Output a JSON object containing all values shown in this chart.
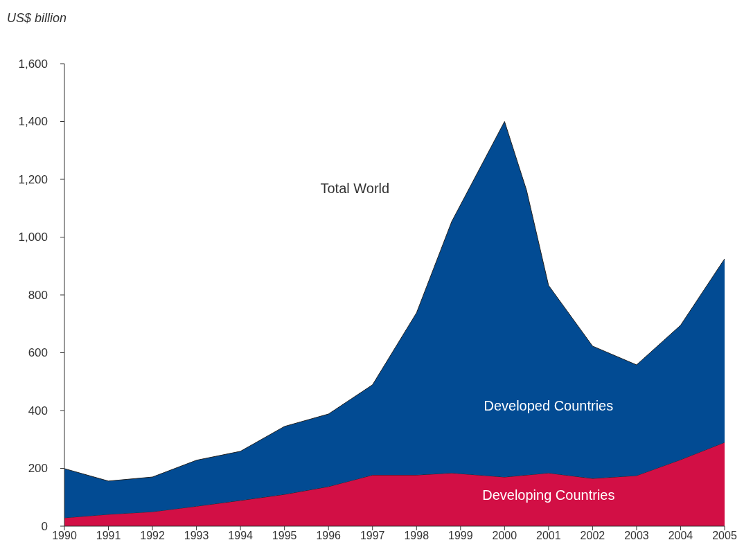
{
  "chart_data": {
    "type": "area",
    "ylabel": "US$ billion",
    "stacked": true,
    "x": [
      1990,
      1991,
      1992,
      1993,
      1994,
      1995,
      1996,
      1997,
      1998,
      1998.8,
      2000,
      2000.5,
      2001,
      2002,
      2003,
      2004,
      2005
    ],
    "series": [
      {
        "name": "Developing Countries",
        "color": "#d20f45",
        "values": [
          29,
          41,
          50,
          69,
          89,
          110,
          137,
          177,
          177,
          184,
          170,
          177,
          184,
          165,
          175,
          230,
          290
        ]
      },
      {
        "name": "Developed Countries",
        "color": "#024b93",
        "values": [
          170,
          115,
          120,
          159,
          170,
          235,
          251,
          312,
          561,
          870,
          1230,
          985,
          649,
          458,
          383,
          465,
          635
        ]
      }
    ],
    "annotations": [
      "Total World"
    ],
    "xlim": [
      1990,
      2005
    ],
    "xticks": [
      1990,
      1991,
      1992,
      1993,
      1994,
      1995,
      1996,
      1997,
      1998,
      1999,
      2000,
      2001,
      2002,
      2003,
      2004,
      2005
    ],
    "ylim": [
      0,
      1600
    ],
    "yticks": [
      0,
      200,
      400,
      {
        "value": 600,
        "label": "600"
      },
      {
        "value": 800,
        "label": "800"
      },
      {
        "value": 1000,
        "label": "1,000"
      },
      {
        "value": 1200,
        "label": "1,200"
      },
      {
        "value": 1400,
        "label": "1,400"
      },
      {
        "value": 1600,
        "label": "1,600"
      }
    ],
    "grid": false,
    "legend": false
  }
}
